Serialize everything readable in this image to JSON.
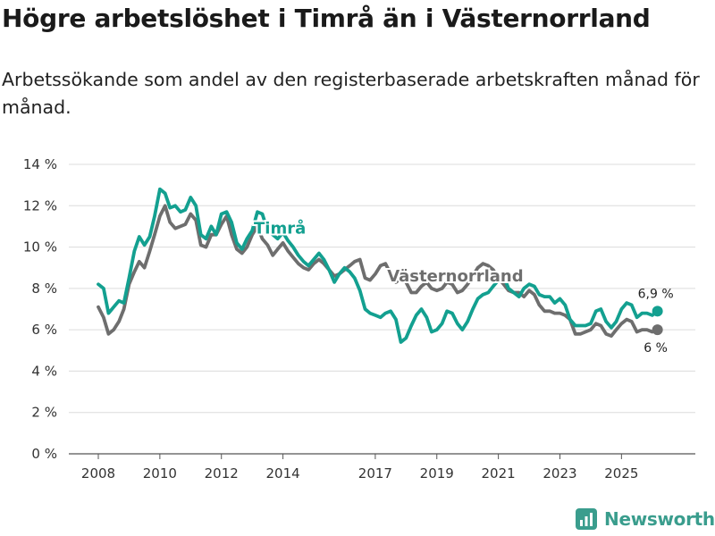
{
  "title": "Högre arbetslöshet i Timrå än i Västernorrland",
  "subtitle": "Arbetssökande som andel av den registerbaserade arbetskraften månad för månad.",
  "brand": {
    "name": "Newsworthy",
    "icon": "bar-chart-logo-icon",
    "color": "#3a9d8d"
  },
  "chart_data": {
    "type": "line",
    "title": "Högre arbetslöshet i Timrå än i Västernorrland",
    "xlabel": "",
    "ylabel": "",
    "xlim": [
      2008.0,
      2026.5
    ],
    "ylim": [
      0,
      14
    ],
    "yticks": [
      0,
      2,
      4,
      6,
      8,
      10,
      12,
      14
    ],
    "ytick_labels": [
      "0 %",
      "2 %",
      "4 %",
      "6 %",
      "8 %",
      "10 %",
      "12 %",
      "14 %"
    ],
    "xticks": [
      2008,
      2010,
      2012,
      2014,
      2017,
      2019,
      2021,
      2023,
      2025
    ],
    "xtick_labels": [
      "2008",
      "2010",
      "2012",
      "2014",
      "2017",
      "2019",
      "2021",
      "2023",
      "2025"
    ],
    "grid": true,
    "series": [
      {
        "name": "Timrå",
        "color": "#13a090",
        "x": [
          2008.0,
          2008.17,
          2008.33,
          2008.5,
          2008.67,
          2008.83,
          2009.0,
          2009.17,
          2009.33,
          2009.5,
          2009.67,
          2009.83,
          2010.0,
          2010.17,
          2010.33,
          2010.5,
          2010.67,
          2010.83,
          2011.0,
          2011.17,
          2011.33,
          2011.5,
          2011.67,
          2011.83,
          2012.0,
          2012.17,
          2012.33,
          2012.5,
          2012.67,
          2012.83,
          2013.0,
          2013.17,
          2013.33,
          2013.5,
          2013.67,
          2013.83,
          2014.0,
          2014.17,
          2014.33,
          2014.5,
          2014.67,
          2014.83,
          2015.0,
          2015.17,
          2015.33,
          2015.5,
          2015.67,
          2015.83,
          2016.0,
          2016.17,
          2016.33,
          2016.5,
          2016.67,
          2016.83,
          2017.0,
          2017.17,
          2017.33,
          2017.5,
          2017.67,
          2017.83,
          2018.0,
          2018.17,
          2018.33,
          2018.5,
          2018.67,
          2018.83,
          2019.0,
          2019.17,
          2019.33,
          2019.5,
          2019.67,
          2019.83,
          2020.0,
          2020.17,
          2020.33,
          2020.5,
          2020.67,
          2020.83,
          2021.0,
          2021.17,
          2021.33,
          2021.5,
          2021.67,
          2021.83,
          2022.0,
          2022.17,
          2022.33,
          2022.5,
          2022.67,
          2022.83,
          2023.0,
          2023.17,
          2023.33,
          2023.5,
          2023.67,
          2023.83,
          2024.0,
          2024.17,
          2024.33,
          2024.5,
          2024.67,
          2024.83,
          2025.0,
          2025.17,
          2025.33,
          2025.5,
          2025.67,
          2025.83,
          2026.0,
          2026.17
        ],
        "values": [
          8.2,
          8.0,
          6.8,
          7.1,
          7.4,
          7.3,
          8.5,
          9.8,
          10.5,
          10.1,
          10.5,
          11.5,
          12.8,
          12.6,
          11.9,
          12.0,
          11.7,
          11.8,
          12.4,
          12.0,
          10.6,
          10.4,
          11.0,
          10.6,
          11.6,
          11.7,
          11.2,
          10.2,
          9.9,
          10.4,
          10.8,
          11.7,
          11.6,
          10.8,
          10.6,
          10.4,
          10.7,
          10.3,
          10.0,
          9.6,
          9.3,
          9.1,
          9.4,
          9.7,
          9.4,
          8.9,
          8.3,
          8.7,
          9.0,
          8.8,
          8.5,
          7.9,
          7.0,
          6.8,
          6.7,
          6.6,
          6.8,
          6.9,
          6.5,
          5.4,
          5.6,
          6.2,
          6.7,
          7.0,
          6.6,
          5.9,
          6.0,
          6.3,
          6.9,
          6.8,
          6.3,
          6.0,
          6.4,
          7.0,
          7.5,
          7.7,
          7.8,
          8.1,
          8.4,
          8.6,
          8.0,
          7.8,
          7.6,
          8.0,
          8.2,
          8.1,
          7.7,
          7.6,
          7.6,
          7.3,
          7.5,
          7.2,
          6.5,
          6.2,
          6.2,
          6.2,
          6.3,
          6.9,
          7.0,
          6.4,
          6.1,
          6.4,
          7.0,
          7.3,
          7.2,
          6.6,
          6.8,
          6.8,
          6.7,
          6.9
        ]
      },
      {
        "name": "Västernorrland",
        "color": "#6e6e6e",
        "x": [
          2008.0,
          2008.17,
          2008.33,
          2008.5,
          2008.67,
          2008.83,
          2009.0,
          2009.17,
          2009.33,
          2009.5,
          2009.67,
          2009.83,
          2010.0,
          2010.17,
          2010.33,
          2010.5,
          2010.67,
          2010.83,
          2011.0,
          2011.17,
          2011.33,
          2011.5,
          2011.67,
          2011.83,
          2012.0,
          2012.17,
          2012.33,
          2012.5,
          2012.67,
          2012.83,
          2013.0,
          2013.17,
          2013.33,
          2013.5,
          2013.67,
          2013.83,
          2014.0,
          2014.17,
          2014.33,
          2014.5,
          2014.67,
          2014.83,
          2015.0,
          2015.17,
          2015.33,
          2015.5,
          2015.67,
          2015.83,
          2016.0,
          2016.17,
          2016.33,
          2016.5,
          2016.67,
          2016.83,
          2017.0,
          2017.17,
          2017.33,
          2017.5,
          2017.67,
          2017.83,
          2018.0,
          2018.17,
          2018.33,
          2018.5,
          2018.67,
          2018.83,
          2019.0,
          2019.17,
          2019.33,
          2019.5,
          2019.67,
          2019.83,
          2020.0,
          2020.17,
          2020.33,
          2020.5,
          2020.67,
          2020.83,
          2021.0,
          2021.17,
          2021.33,
          2021.5,
          2021.67,
          2021.83,
          2022.0,
          2022.17,
          2022.33,
          2022.5,
          2022.67,
          2022.83,
          2023.0,
          2023.17,
          2023.33,
          2023.5,
          2023.67,
          2023.83,
          2024.0,
          2024.17,
          2024.33,
          2024.5,
          2024.67,
          2024.83,
          2025.0,
          2025.17,
          2025.33,
          2025.5,
          2025.67,
          2025.83,
          2026.0,
          2026.17
        ],
        "values": [
          7.1,
          6.6,
          5.8,
          6.0,
          6.4,
          7.0,
          8.2,
          8.8,
          9.3,
          9.0,
          9.8,
          10.6,
          11.5,
          12.0,
          11.2,
          10.9,
          11.0,
          11.1,
          11.6,
          11.3,
          10.1,
          10.0,
          10.6,
          10.6,
          11.1,
          11.5,
          10.6,
          9.9,
          9.7,
          10.0,
          10.6,
          11.0,
          10.4,
          10.1,
          9.6,
          9.9,
          10.2,
          9.8,
          9.5,
          9.2,
          9.0,
          8.9,
          9.2,
          9.4,
          9.2,
          8.9,
          8.6,
          8.7,
          8.9,
          9.1,
          9.3,
          9.4,
          8.5,
          8.4,
          8.7,
          9.1,
          9.2,
          8.7,
          8.3,
          8.5,
          8.3,
          7.8,
          7.8,
          8.1,
          8.3,
          8.0,
          7.9,
          8.0,
          8.3,
          8.2,
          7.8,
          7.9,
          8.2,
          8.6,
          9.0,
          9.2,
          9.1,
          8.9,
          8.5,
          8.2,
          7.9,
          7.8,
          7.8,
          7.6,
          7.9,
          7.7,
          7.2,
          6.9,
          6.9,
          6.8,
          6.8,
          6.7,
          6.5,
          5.8,
          5.8,
          5.9,
          6.0,
          6.3,
          6.2,
          5.8,
          5.7,
          6.0,
          6.3,
          6.5,
          6.4,
          5.9,
          6.0,
          6.0,
          5.9,
          6.0
        ]
      }
    ],
    "annotations": [
      {
        "text": "Timrå",
        "series": 0,
        "x": 2013.9,
        "y": 10.9
      },
      {
        "text": "Västernorrland",
        "series": 1,
        "x": 2019.6,
        "y": 8.6
      },
      {
        "text": "6,9 %",
        "series": 0,
        "x": 2026.17,
        "y": 6.9
      },
      {
        "text": "6 %",
        "series": 1,
        "x": 2026.17,
        "y": 6.0
      }
    ]
  }
}
